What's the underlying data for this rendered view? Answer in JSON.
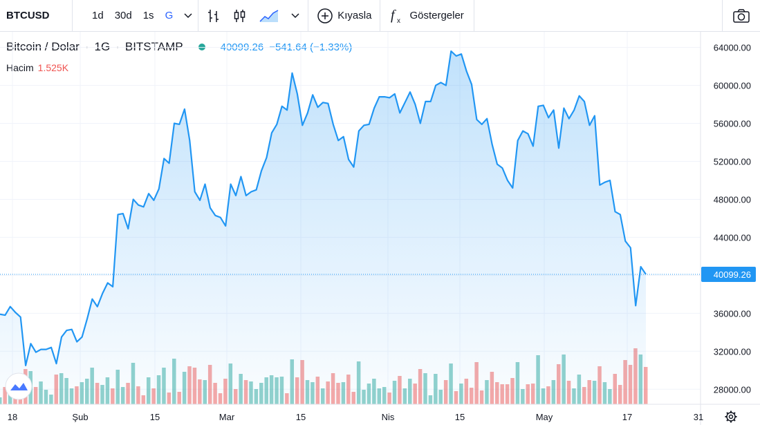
{
  "toolbar": {
    "symbol": "BTCUSD",
    "intervals": [
      "1d",
      "30d",
      "1s",
      "G"
    ],
    "compare_label": "Kıyasla",
    "indicators_label": "Göstergeler"
  },
  "legend": {
    "title": "Bitcoin / Dolar",
    "interval": "1G",
    "exchange": "BITSTAMP",
    "price": "40099.26",
    "change": "−541.64 (−1.33%)",
    "volume_label": "Hacim",
    "volume_value": "1.525K"
  },
  "colors": {
    "line": "#2196f3",
    "up": "#26a69a",
    "down": "#ef5350",
    "accent": "#2962ff"
  },
  "chart_data": {
    "type": "area",
    "y_ticks": [
      "64000.00",
      "60000.00",
      "56000.00",
      "52000.00",
      "48000.00",
      "44000.00",
      "40000.00",
      "36000.00",
      "32000.00",
      "28000.00"
    ],
    "x_ticks": [
      "18",
      "Şub",
      "15",
      "Mar",
      "15",
      "Nis",
      "15",
      "May",
      "17",
      "31"
    ],
    "ylim": [
      27000,
      65500
    ],
    "last_price_label": "40099.26",
    "price": [
      35900,
      35800,
      36700,
      36100,
      35600,
      30500,
      32800,
      31900,
      32200,
      32200,
      32400,
      30700,
      33500,
      34200,
      34300,
      33000,
      33500,
      35400,
      37500,
      36700,
      38100,
      39200,
      38800,
      46400,
      46500,
      44900,
      48000,
      47400,
      47200,
      48600,
      47900,
      49100,
      52300,
      51800,
      56000,
      55900,
      57500,
      54200,
      48800,
      47900,
      49600,
      47100,
      46300,
      46100,
      45200,
      49600,
      48400,
      50400,
      48400,
      48800,
      49000,
      51000,
      52400,
      55000,
      55900,
      57800,
      57400,
      61300,
      59100,
      55800,
      57100,
      59000,
      57700,
      58200,
      58100,
      55900,
      54200,
      54600,
      52200,
      51400,
      55200,
      55800,
      55900,
      57600,
      58800,
      58800,
      58700,
      59100,
      57100,
      58200,
      59300,
      58000,
      56000,
      58300,
      58300,
      60000,
      60300,
      60000,
      63600,
      63100,
      63300,
      61500,
      60100,
      56400,
      55900,
      56500,
      53800,
      51700,
      51300,
      50000,
      49200,
      54200,
      55200,
      54900,
      53600,
      57800,
      57900,
      56600,
      57400,
      53400,
      57600,
      56500,
      57400,
      58900,
      58300,
      55800,
      56800,
      49500,
      49800,
      50000,
      46700,
      46400,
      43600,
      42900,
      36800,
      40900,
      40099
    ]
  }
}
